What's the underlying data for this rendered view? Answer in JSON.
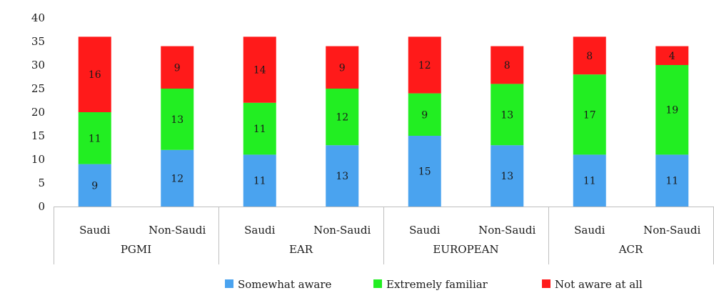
{
  "chart_data": {
    "type": "bar",
    "stacked": true,
    "title": "",
    "xlabel": "",
    "ylabel": "",
    "ylim": [
      0,
      40
    ],
    "yticks": [
      0,
      5,
      10,
      15,
      20,
      25,
      30,
      35,
      40
    ],
    "grid": false,
    "legend_position": "bottom",
    "groups": [
      {
        "label": "PGMI",
        "categories": [
          "Saudi",
          "Non-Saudi"
        ]
      },
      {
        "label": "EAR",
        "categories": [
          "Saudi",
          "Non-Saudi"
        ]
      },
      {
        "label": "EUROPEAN",
        "categories": [
          "Saudi",
          "Non-Saudi"
        ]
      },
      {
        "label": "ACR",
        "categories": [
          "Saudi",
          "Non-Saudi"
        ]
      }
    ],
    "series": [
      {
        "name": "Somewhat aware",
        "color": "#4aa3ef",
        "values": [
          9,
          12,
          11,
          13,
          15,
          13,
          11,
          11
        ]
      },
      {
        "name": "Extremely familiar",
        "color": "#22ee22",
        "values": [
          11,
          13,
          11,
          12,
          9,
          13,
          17,
          19
        ]
      },
      {
        "name": "Not aware at all",
        "color": "#ff1a1a",
        "values": [
          16,
          9,
          14,
          9,
          12,
          8,
          8,
          4
        ]
      }
    ]
  }
}
